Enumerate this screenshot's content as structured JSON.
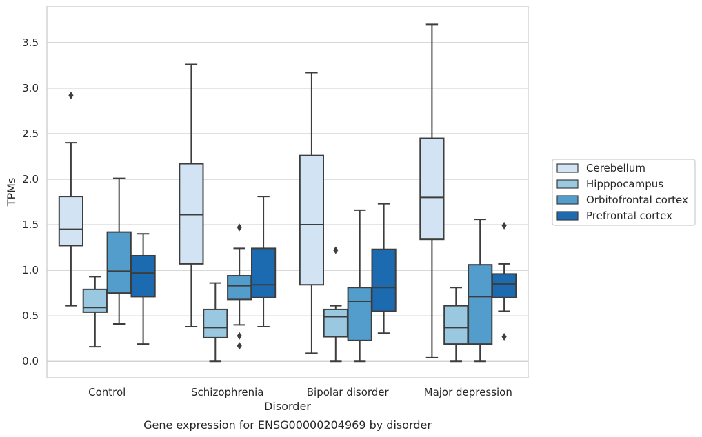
{
  "chart_data": {
    "type": "box",
    "caption": "Gene expression for ENSG00000204969 by disorder",
    "xlabel": "Disorder",
    "ylabel": "TPMs",
    "ylim": [
      -0.18,
      3.9
    ],
    "yticks": [
      0.0,
      0.5,
      1.0,
      1.5,
      2.0,
      2.5,
      3.0,
      3.5
    ],
    "ytick_labels": [
      "0.0",
      "0.5",
      "1.0",
      "1.5",
      "2.0",
      "2.5",
      "3.0",
      "3.5"
    ],
    "grid": "horizontal",
    "legend_position": "right",
    "categories": [
      "Control",
      "Schizophrenia",
      "Bipolar disorder",
      "Major depression"
    ],
    "series": [
      {
        "name": "Cerebellum",
        "color": "#d2e3f3",
        "boxes": [
          {
            "whislo": 0.61,
            "q1": 1.27,
            "med": 1.45,
            "q3": 1.81,
            "whishi": 2.4,
            "fliers": [
              2.92
            ]
          },
          {
            "whislo": 0.38,
            "q1": 1.07,
            "med": 1.61,
            "q3": 2.17,
            "whishi": 3.26,
            "fliers": []
          },
          {
            "whislo": 0.09,
            "q1": 0.84,
            "med": 1.5,
            "q3": 2.26,
            "whishi": 3.17,
            "fliers": []
          },
          {
            "whislo": 0.04,
            "q1": 1.34,
            "med": 1.8,
            "q3": 2.45,
            "whishi": 3.7,
            "fliers": []
          }
        ]
      },
      {
        "name": "Hipppocampus",
        "color": "#9ac8e0",
        "boxes": [
          {
            "whislo": 0.16,
            "q1": 0.54,
            "med": 0.59,
            "q3": 0.79,
            "whishi": 0.93,
            "fliers": []
          },
          {
            "whislo": 0.0,
            "q1": 0.26,
            "med": 0.37,
            "q3": 0.57,
            "whishi": 0.86,
            "fliers": []
          },
          {
            "whislo": 0.0,
            "q1": 0.27,
            "med": 0.49,
            "q3": 0.57,
            "whishi": 0.61,
            "fliers": [
              1.22
            ]
          },
          {
            "whislo": 0.0,
            "q1": 0.19,
            "med": 0.37,
            "q3": 0.61,
            "whishi": 0.81,
            "fliers": []
          }
        ]
      },
      {
        "name": "Orbitofrontal cortex",
        "color": "#529dcc",
        "boxes": [
          {
            "whislo": 0.41,
            "q1": 0.75,
            "med": 0.99,
            "q3": 1.42,
            "whishi": 2.01,
            "fliers": []
          },
          {
            "whislo": 0.4,
            "q1": 0.68,
            "med": 0.83,
            "q3": 0.94,
            "whishi": 1.24,
            "fliers": [
              1.47,
              0.28,
              0.17
            ]
          },
          {
            "whislo": 0.0,
            "q1": 0.23,
            "med": 0.66,
            "q3": 0.81,
            "whishi": 1.66,
            "fliers": []
          },
          {
            "whislo": 0.0,
            "q1": 0.19,
            "med": 0.71,
            "q3": 1.06,
            "whishi": 1.56,
            "fliers": []
          }
        ]
      },
      {
        "name": "Prefrontal cortex",
        "color": "#1c6aaf",
        "boxes": [
          {
            "whislo": 0.19,
            "q1": 0.71,
            "med": 0.97,
            "q3": 1.16,
            "whishi": 1.4,
            "fliers": []
          },
          {
            "whislo": 0.38,
            "q1": 0.7,
            "med": 0.84,
            "q3": 1.24,
            "whishi": 1.81,
            "fliers": []
          },
          {
            "whislo": 0.31,
            "q1": 0.55,
            "med": 0.81,
            "q3": 1.23,
            "whishi": 1.73,
            "fliers": []
          },
          {
            "whislo": 0.55,
            "q1": 0.7,
            "med": 0.85,
            "q3": 0.96,
            "whishi": 1.07,
            "fliers": [
              1.49,
              0.27
            ]
          }
        ]
      }
    ]
  }
}
